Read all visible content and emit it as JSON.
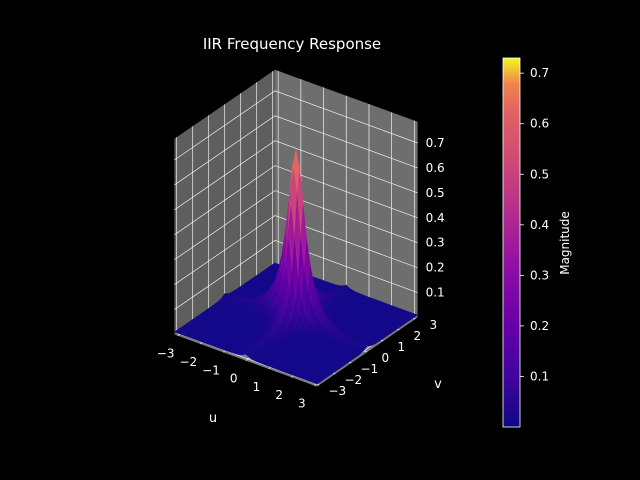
{
  "chart_data": {
    "type": "surface3d",
    "title": "IIR Frequency Response",
    "xlabel": "u",
    "ylabel": "v",
    "zlabel": "",
    "xlim": [
      -3.1416,
      3.1416
    ],
    "ylim": [
      -3.1416,
      3.1416
    ],
    "zlim": [
      0.0,
      0.73
    ],
    "xticks": [
      -3,
      -2,
      -1,
      0,
      1,
      2,
      3
    ],
    "xtick_labels": [
      "−3",
      "−2",
      "−1",
      "0",
      "1",
      "2",
      "3"
    ],
    "yticks": [
      -3,
      -2,
      -1,
      0,
      1,
      2,
      3
    ],
    "ytick_labels": [
      "−3",
      "−2",
      "−1",
      "0",
      "1",
      "2",
      "3"
    ],
    "zticks": [
      0.1,
      0.2,
      0.3,
      0.4,
      0.5,
      0.6,
      0.7
    ],
    "ztick_labels": [
      "0.1",
      "0.2",
      "0.3",
      "0.4",
      "0.5",
      "0.6",
      "0.7"
    ],
    "surface": {
      "description_of_shape": "sharp peak at origin, ridges along u=0 and v=0 axes",
      "peak": {
        "u": 0,
        "v": 0,
        "magnitude": 0.73
      },
      "baseline_magnitude": 0.01
    },
    "colorbar": {
      "label": "Magnitude",
      "colormap": "plasma",
      "range": [
        0.0,
        0.73
      ],
      "ticks": [
        0.1,
        0.2,
        0.3,
        0.4,
        0.5,
        0.6,
        0.7
      ],
      "tick_labels": [
        "0.1",
        "0.2",
        "0.3",
        "0.4",
        "0.5",
        "0.6",
        "0.7"
      ]
    },
    "grid": true,
    "colors": {
      "background": "#000000",
      "pane": "#6e6e6e",
      "grid": "#ffffff",
      "text": "#ffffff"
    }
  }
}
